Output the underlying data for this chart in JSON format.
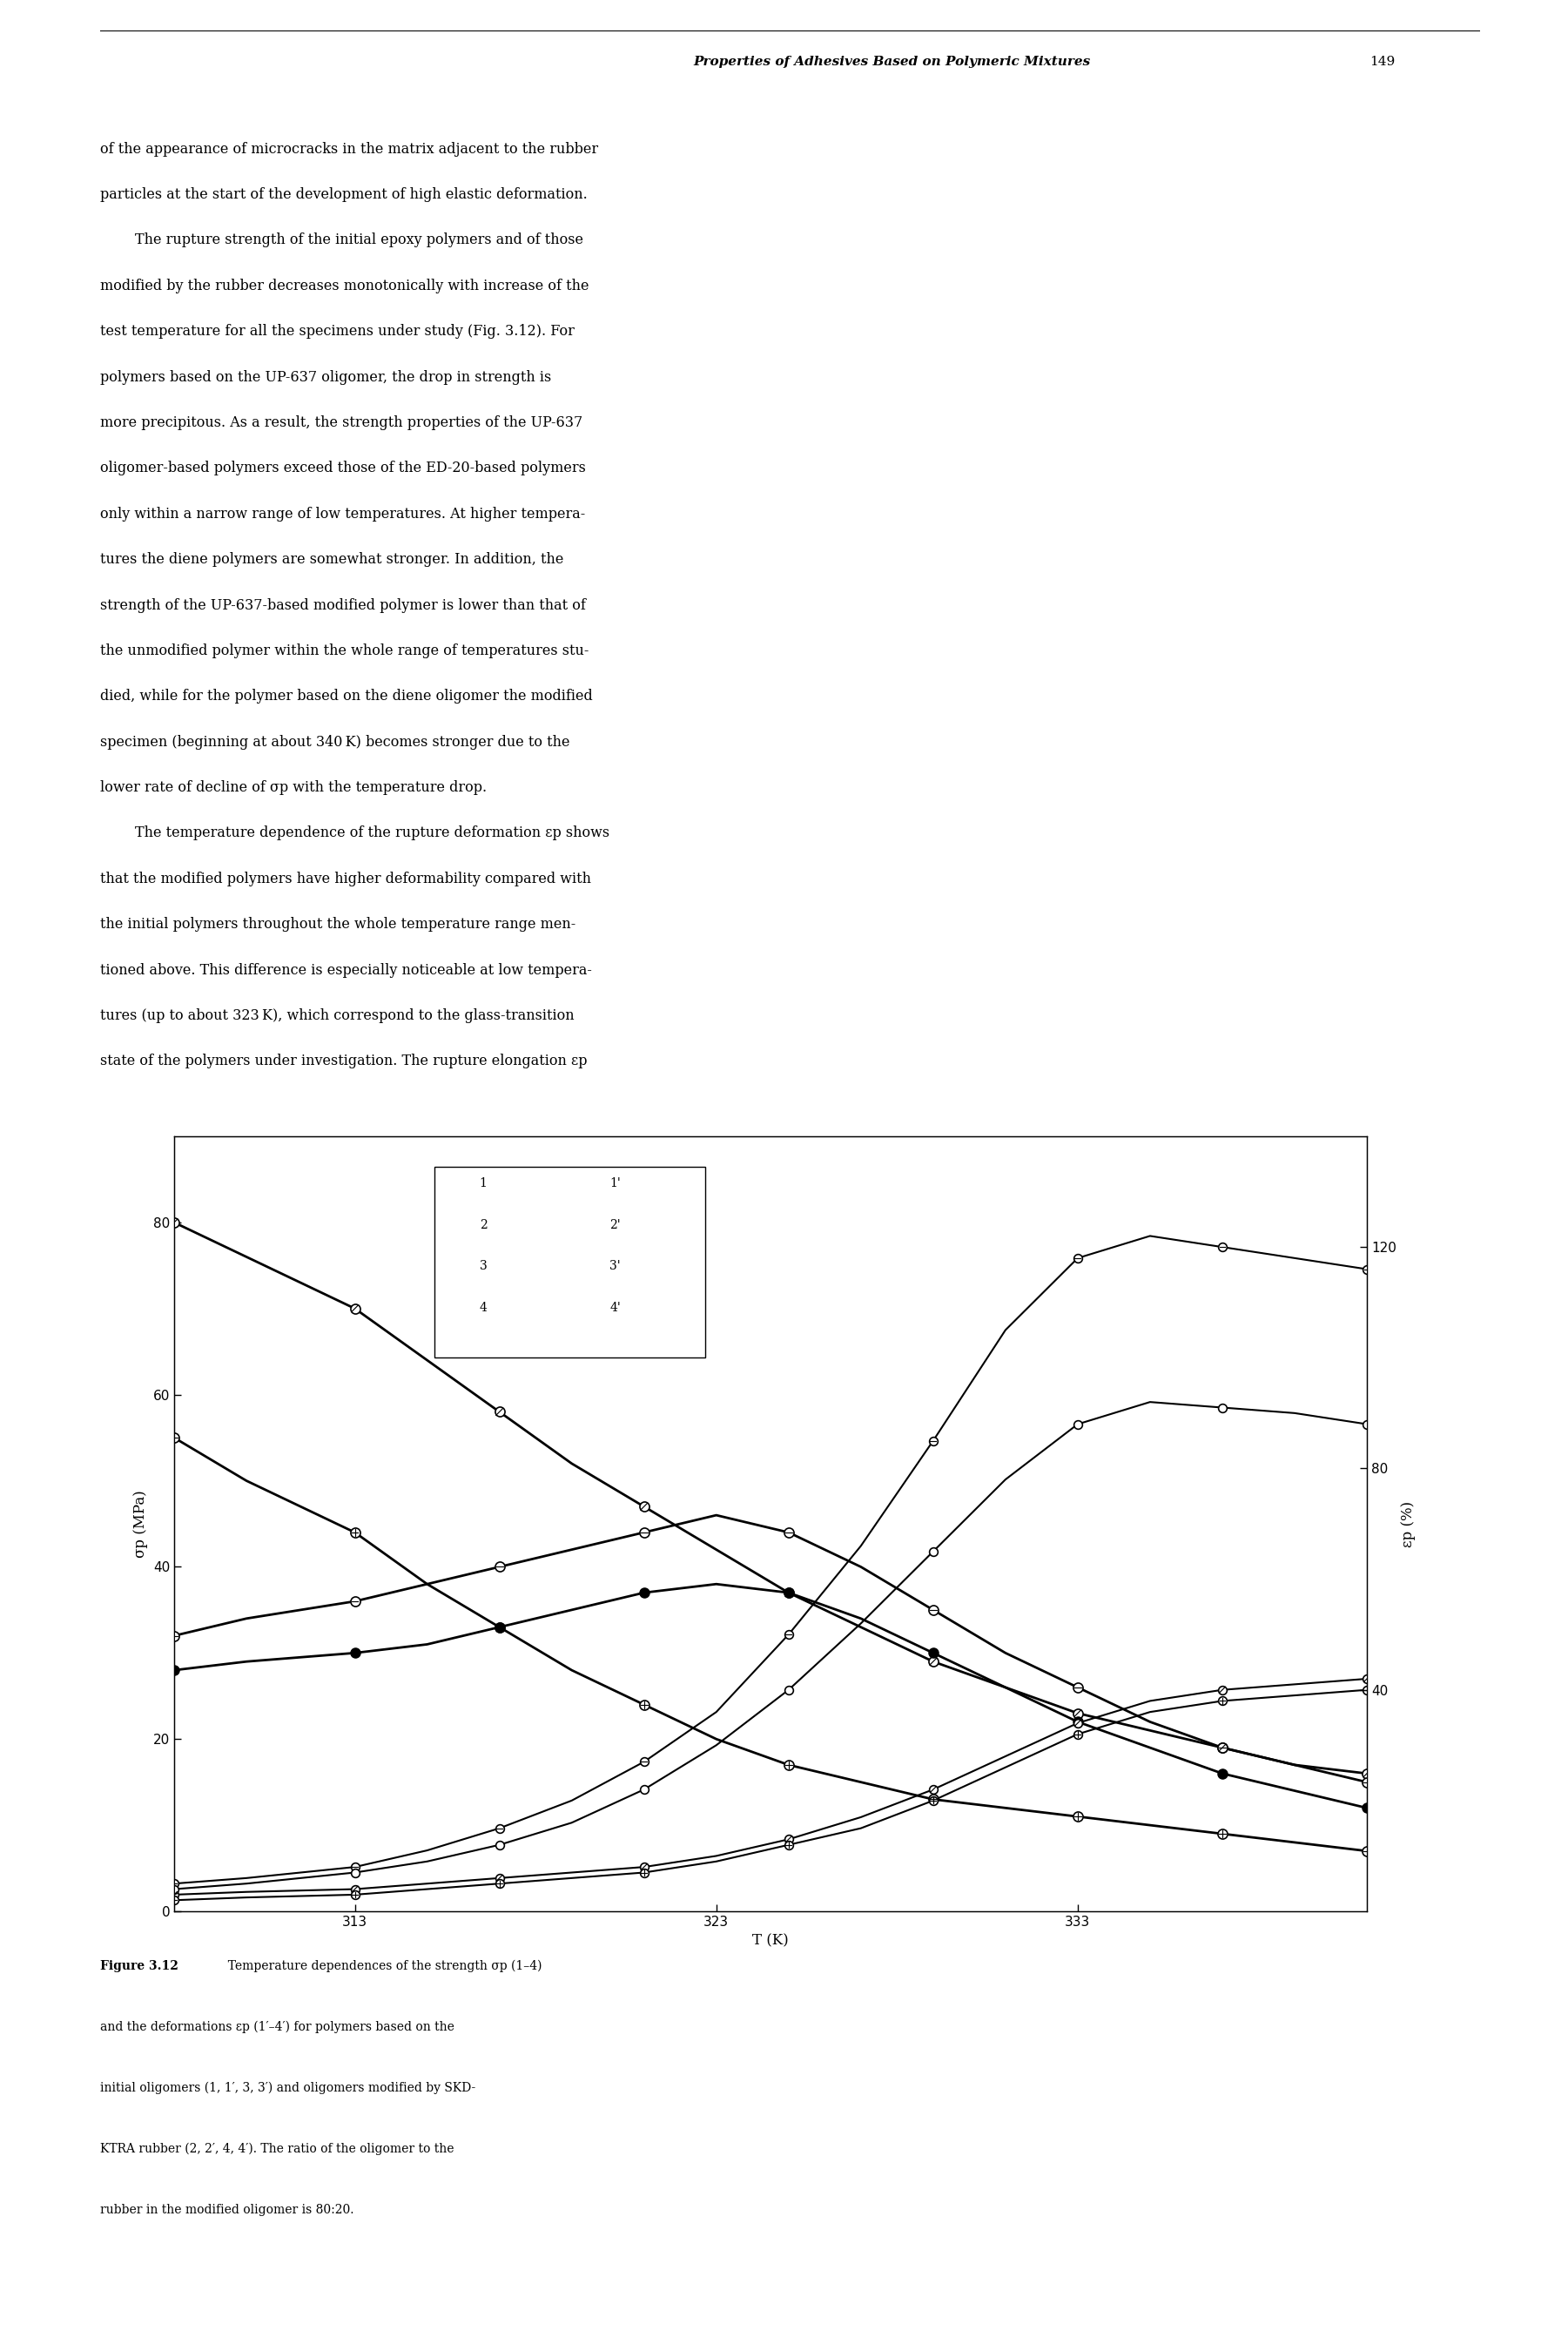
{
  "header_text": "Properties of Adhesives Based on Polymeric Mixtures",
  "header_page": "149",
  "body_text": [
    "of the appearance of microcracks in the matrix adjacent to the rubber",
    "particles at the start of the development of high elastic deformation.",
    "    The rupture strength of the initial epoxy polymers and of those",
    "modified by the rubber decreases monotonically with increase of the",
    "test temperature for all the specimens under study (Fig. 3.12). For",
    "polymers based on the UP-637 oligomer, the drop in strength is",
    "more precipitous. As a result, the strength properties of the UP-637",
    "oligomer-based polymers exceed those of the ED-20-based polymers",
    "only within a narrow range of low temperatures. At higher tempera-",
    "tures the diene polymers are somewhat stronger. In addition, the",
    "strength of the UP-637-based modified polymer is lower than that of",
    "the unmodified polymer within the whole range of temperatures stu-",
    "died, while for the polymer based on the diene oligomer the modified",
    "specimen (beginning at about 340 K) becomes stronger due to the",
    "lower rate of decline of σp with the temperature drop.",
    "    The temperature dependence of the rupture deformation εp shows",
    "that the modified polymers have higher deformability compared with",
    "the initial polymers throughout the whole temperature range men-",
    "tioned above. This difference is especially noticeable at low tempera-",
    "tures (up to about 323 K), which correspond to the glass-transition",
    "state of the polymers under investigation. The rupture elongation εp"
  ],
  "caption_bold": "Figure 3.12",
  "caption_lines": [
    "  Temperature dependences of the strength σp (1–4)",
    "and the deformations εp (1′–4′) for polymers based on the",
    "initial oligomers (1, 1′, 3, 3′) and oligomers modified by SKD-",
    "KTRA rubber (2, 2′, 4, 4′). The ratio of the oligomer to the",
    "rubber in the modified oligomer is 80:20."
  ],
  "xlim": [
    308,
    341
  ],
  "ylim_left": [
    0,
    90
  ],
  "ylim_right": [
    0,
    140
  ],
  "xticks": [
    313,
    323,
    333
  ],
  "yticks_left": [
    0,
    20,
    40,
    60,
    80
  ],
  "yticks_right": [
    40,
    80,
    120
  ],
  "xlabel": "T (K)",
  "ylabel_left": "σp (MPa)",
  "ylabel_right": "εp (%)",
  "c1_T": [
    308,
    310,
    313,
    315,
    317,
    319,
    321,
    323,
    325,
    327,
    329,
    331,
    333,
    335,
    337,
    339,
    341
  ],
  "c1_s": [
    80,
    76,
    70,
    64,
    58,
    52,
    47,
    42,
    37,
    33,
    29,
    26,
    23,
    21,
    19,
    17,
    16
  ],
  "c2_T": [
    308,
    310,
    313,
    315,
    317,
    319,
    321,
    323,
    325,
    327,
    329,
    331,
    333,
    335,
    337,
    339,
    341
  ],
  "c2_s": [
    32,
    34,
    36,
    38,
    40,
    42,
    44,
    46,
    44,
    40,
    35,
    30,
    26,
    22,
    19,
    17,
    15
  ],
  "c3_T": [
    308,
    310,
    313,
    315,
    317,
    319,
    321,
    323,
    325,
    327,
    329,
    331,
    333,
    335,
    337,
    339,
    341
  ],
  "c3_s": [
    55,
    50,
    44,
    38,
    33,
    28,
    24,
    20,
    17,
    15,
    13,
    12,
    11,
    10,
    9,
    8,
    7
  ],
  "c4_T": [
    308,
    310,
    313,
    315,
    317,
    319,
    321,
    323,
    325,
    327,
    329,
    331,
    333,
    335,
    337,
    339,
    341
  ],
  "c4_s": [
    28,
    29,
    30,
    31,
    33,
    35,
    37,
    38,
    37,
    34,
    30,
    26,
    22,
    19,
    16,
    14,
    12
  ],
  "c1p_T": [
    308,
    310,
    313,
    315,
    317,
    319,
    321,
    323,
    325,
    327,
    329,
    331,
    333,
    335,
    337,
    339,
    341
  ],
  "c1p_e": [
    3,
    3.5,
    4,
    5,
    6,
    7,
    8,
    10,
    13,
    17,
    22,
    28,
    34,
    38,
    40,
    41,
    42
  ],
  "c2p_T": [
    308,
    310,
    313,
    315,
    317,
    319,
    321,
    323,
    325,
    327,
    329,
    331,
    333,
    335,
    337,
    339,
    341
  ],
  "c2p_e": [
    5,
    6,
    8,
    11,
    15,
    20,
    27,
    36,
    50,
    66,
    85,
    105,
    118,
    122,
    120,
    118,
    116
  ],
  "c3p_T": [
    308,
    310,
    313,
    315,
    317,
    319,
    321,
    323,
    325,
    327,
    329,
    331,
    333,
    335,
    337,
    339,
    341
  ],
  "c3p_e": [
    2,
    2.5,
    3,
    4,
    5,
    6,
    7,
    9,
    12,
    15,
    20,
    26,
    32,
    36,
    38,
    39,
    40
  ],
  "c4p_T": [
    308,
    310,
    313,
    315,
    317,
    319,
    321,
    323,
    325,
    327,
    329,
    331,
    333,
    335,
    337,
    339,
    341
  ],
  "c4p_e": [
    4,
    5,
    7,
    9,
    12,
    16,
    22,
    30,
    40,
    52,
    65,
    78,
    88,
    92,
    91,
    90,
    88
  ]
}
